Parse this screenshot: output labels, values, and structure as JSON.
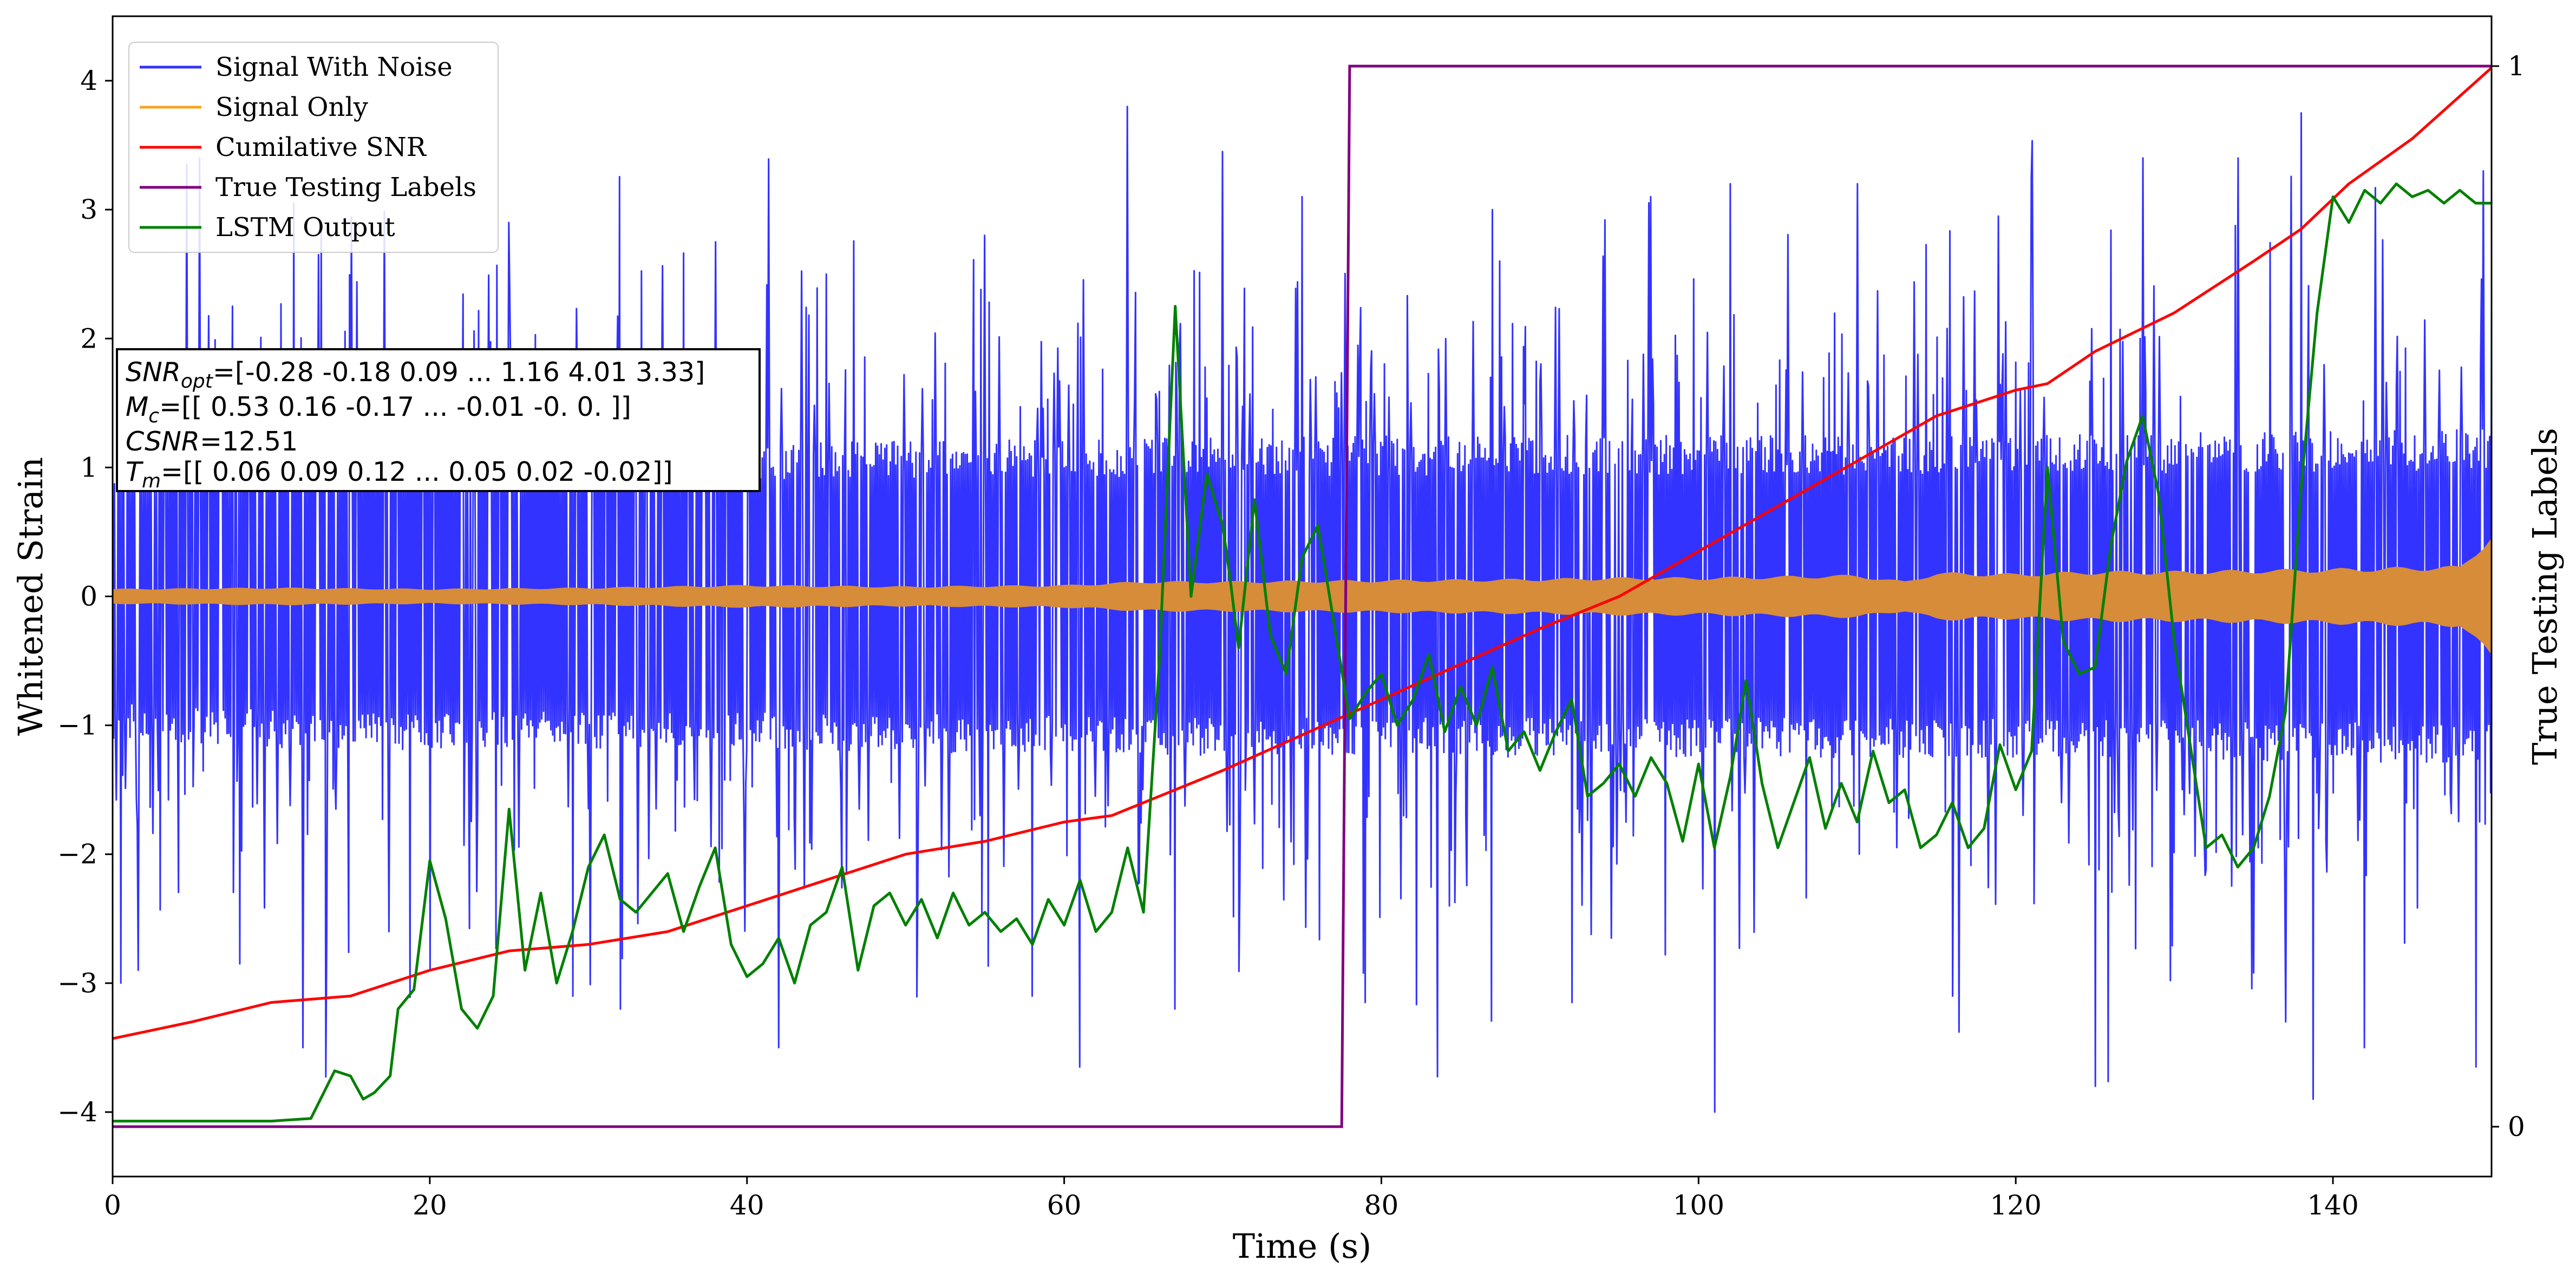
{
  "chart_data": {
    "type": "line",
    "xlabel": "Time (s)",
    "ylabel": "Whitened Strain",
    "y2label": "True Testing Labels",
    "xlim": [
      0,
      150
    ],
    "ylim": [
      -4.5,
      4.5
    ],
    "y2lim": [
      -0.047,
      1.047
    ],
    "xticks": [
      "0",
      "20",
      "40",
      "60",
      "80",
      "100",
      "120",
      "140"
    ],
    "yticks": [
      "−4",
      "−3",
      "−2",
      "−1",
      "0",
      "1",
      "2",
      "3",
      "4"
    ],
    "y2ticks": [
      "0",
      "1"
    ],
    "legend_position": "upper-left",
    "annotation": {
      "line1": "SNRopt=[-0.28 -0.18  0.09 ...  1.16  4.01  3.33]",
      "line2": "Mc=[[ 0.53  0.16 -0.17 ... -0.01 -0.    0.  ]]",
      "line3": "CSNR=12.51",
      "line4": "Tm=[[ 0.06  0.09  0.12 ...  0.05  0.02 -0.02]]",
      "line1_sym": "SNR",
      "line1_sub": "opt",
      "line1_rest": "=[-0.28 -0.18  0.09 ...  1.16  4.01  3.33]",
      "line2_sym": "M",
      "line2_sub": "c",
      "line2_rest": "=[[ 0.53  0.16 -0.17 ... -0.01 -0.    0.  ]]",
      "line3_sym": "CSNR",
      "line3_rest": "=12.51",
      "line4_sym": "T",
      "line4_sub": "m",
      "line4_rest": "=[[ 0.06  0.09  0.12 ...  0.05  0.02 -0.02]]"
    },
    "series": [
      {
        "name": "Signal With Noise",
        "color": "#3333ff",
        "axis": "left",
        "render": "noise-band",
        "band_upper": [
          [
            0,
            1.1
          ],
          [
            15,
            1.2
          ],
          [
            30,
            1.15
          ],
          [
            60,
            1.2
          ],
          [
            90,
            1.25
          ],
          [
            120,
            1.25
          ],
          [
            150,
            1.3
          ]
        ],
        "band_lower": [
          [
            0,
            -1.1
          ],
          [
            15,
            -1.2
          ],
          [
            30,
            -1.2
          ],
          [
            60,
            -1.25
          ],
          [
            90,
            -1.25
          ],
          [
            120,
            -1.25
          ],
          [
            150,
            -1.3
          ]
        ],
        "peak_spikes": [
          [
            0.5,
            -3.0
          ],
          [
            1.6,
            -2.9
          ],
          [
            4.7,
            3.35
          ],
          [
            5.5,
            3.4
          ],
          [
            8,
            -2.85
          ],
          [
            12,
            -3.5
          ],
          [
            13,
            2.65
          ],
          [
            20,
            -2.9
          ],
          [
            25,
            2.9
          ],
          [
            29,
            -3.1
          ],
          [
            32,
            -3.2
          ],
          [
            38,
            2.75
          ],
          [
            42,
            -3.5
          ],
          [
            45,
            2.5
          ],
          [
            55,
            2.8
          ],
          [
            58,
            -3.1
          ],
          [
            61,
            -3.65
          ],
          [
            64,
            3.8
          ],
          [
            67,
            -3.2
          ],
          [
            70,
            3.45
          ],
          [
            75,
            3.1
          ],
          [
            79,
            -3.15
          ],
          [
            87,
            3.0
          ],
          [
            92,
            -3.15
          ],
          [
            97,
            3.1
          ],
          [
            101,
            -4.0
          ],
          [
            102,
            3.2
          ],
          [
            110,
            3.2
          ],
          [
            116,
            -3.1
          ],
          [
            121,
            3.25
          ],
          [
            125,
            -3.8
          ],
          [
            128,
            3.4
          ],
          [
            134,
            3.4
          ],
          [
            137,
            -3.3
          ],
          [
            138,
            3.75
          ],
          [
            142,
            -3.5
          ],
          [
            149,
            -3.65
          ],
          [
            149.5,
            3.3
          ]
        ]
      },
      {
        "name": "Signal Only",
        "color": "#f5a623",
        "axis": "left",
        "render": "amplitude-band",
        "fill_color": "#d68c38",
        "amplitude": [
          [
            0,
            0.06
          ],
          [
            10,
            0.07
          ],
          [
            20,
            0.06
          ],
          [
            30,
            0.07
          ],
          [
            40,
            0.09
          ],
          [
            50,
            0.08
          ],
          [
            60,
            0.09
          ],
          [
            65,
            0.12
          ],
          [
            70,
            0.12
          ],
          [
            80,
            0.13
          ],
          [
            90,
            0.14
          ],
          [
            95,
            0.15
          ],
          [
            100,
            0.15
          ],
          [
            105,
            0.16
          ],
          [
            110,
            0.17
          ],
          [
            113,
            0.12
          ],
          [
            115,
            0.19
          ],
          [
            120,
            0.18
          ],
          [
            125,
            0.2
          ],
          [
            130,
            0.2
          ],
          [
            140,
            0.22
          ],
          [
            148,
            0.24
          ],
          [
            150,
            0.5
          ]
        ]
      },
      {
        "name": "Cumilative SNR",
        "color": "#ff0000",
        "axis": "left",
        "points": [
          [
            0,
            -3.43
          ],
          [
            5,
            -3.3
          ],
          [
            10,
            -3.15
          ],
          [
            15,
            -3.1
          ],
          [
            20,
            -2.9
          ],
          [
            25,
            -2.75
          ],
          [
            30,
            -2.7
          ],
          [
            35,
            -2.6
          ],
          [
            40,
            -2.4
          ],
          [
            45,
            -2.2
          ],
          [
            50,
            -2.0
          ],
          [
            55,
            -1.9
          ],
          [
            60,
            -1.75
          ],
          [
            63,
            -1.7
          ],
          [
            70,
            -1.35
          ],
          [
            80,
            -0.8
          ],
          [
            90,
            -0.25
          ],
          [
            95,
            0.0
          ],
          [
            100,
            0.35
          ],
          [
            105,
            0.7
          ],
          [
            110,
            1.05
          ],
          [
            115,
            1.4
          ],
          [
            120,
            1.6
          ],
          [
            122,
            1.65
          ],
          [
            125,
            1.9
          ],
          [
            130,
            2.2
          ],
          [
            135,
            2.6
          ],
          [
            138,
            2.85
          ],
          [
            141,
            3.2
          ],
          [
            145,
            3.55
          ],
          [
            150,
            4.1
          ]
        ]
      },
      {
        "name": "True Testing Labels",
        "color": "#800080",
        "axis": "right",
        "points": [
          [
            0,
            0
          ],
          [
            77.5,
            0
          ],
          [
            78,
            1
          ],
          [
            150,
            1
          ]
        ]
      },
      {
        "name": "LSTM Output",
        "color": "#008000",
        "axis": "left",
        "points": [
          [
            0,
            -4.07
          ],
          [
            10,
            -4.07
          ],
          [
            12.5,
            -4.05
          ],
          [
            14,
            -3.68
          ],
          [
            15,
            -3.72
          ],
          [
            15.8,
            -3.9
          ],
          [
            16.5,
            -3.85
          ],
          [
            17.5,
            -3.72
          ],
          [
            18,
            -3.2
          ],
          [
            19,
            -3.05
          ],
          [
            20,
            -2.05
          ],
          [
            21,
            -2.5
          ],
          [
            22,
            -3.2
          ],
          [
            23,
            -3.35
          ],
          [
            24,
            -3.1
          ],
          [
            25,
            -1.65
          ],
          [
            26,
            -2.9
          ],
          [
            27,
            -2.3
          ],
          [
            28,
            -3.0
          ],
          [
            29,
            -2.6
          ],
          [
            30,
            -2.1
          ],
          [
            31,
            -1.85
          ],
          [
            32,
            -2.35
          ],
          [
            33,
            -2.45
          ],
          [
            34,
            -2.3
          ],
          [
            35,
            -2.15
          ],
          [
            36,
            -2.6
          ],
          [
            37,
            -2.25
          ],
          [
            38,
            -1.95
          ],
          [
            39,
            -2.7
          ],
          [
            40,
            -2.95
          ],
          [
            41,
            -2.85
          ],
          [
            42,
            -2.65
          ],
          [
            43,
            -3.0
          ],
          [
            44,
            -2.55
          ],
          [
            45,
            -2.45
          ],
          [
            46,
            -2.1
          ],
          [
            47,
            -2.9
          ],
          [
            48,
            -2.4
          ],
          [
            49,
            -2.3
          ],
          [
            50,
            -2.55
          ],
          [
            51,
            -2.35
          ],
          [
            52,
            -2.65
          ],
          [
            53,
            -2.3
          ],
          [
            54,
            -2.55
          ],
          [
            55,
            -2.45
          ],
          [
            56,
            -2.6
          ],
          [
            57,
            -2.5
          ],
          [
            58,
            -2.7
          ],
          [
            59,
            -2.35
          ],
          [
            60,
            -2.55
          ],
          [
            61,
            -2.2
          ],
          [
            62,
            -2.6
          ],
          [
            63,
            -2.45
          ],
          [
            64,
            -1.95
          ],
          [
            65,
            -2.45
          ],
          [
            66,
            -0.5
          ],
          [
            67,
            2.25
          ],
          [
            68,
            0.0
          ],
          [
            69,
            0.95
          ],
          [
            70,
            0.55
          ],
          [
            70.5,
            0.1
          ],
          [
            71,
            -0.4
          ],
          [
            72,
            0.75
          ],
          [
            73,
            -0.3
          ],
          [
            74,
            -0.6
          ],
          [
            75,
            0.3
          ],
          [
            76,
            0.55
          ],
          [
            77,
            -0.2
          ],
          [
            78,
            -0.95
          ],
          [
            79,
            -0.75
          ],
          [
            80,
            -0.6
          ],
          [
            81,
            -1.0
          ],
          [
            82,
            -0.8
          ],
          [
            83,
            -0.45
          ],
          [
            84,
            -1.05
          ],
          [
            85,
            -0.7
          ],
          [
            86,
            -1.0
          ],
          [
            87,
            -0.55
          ],
          [
            88,
            -1.2
          ],
          [
            89,
            -1.05
          ],
          [
            90,
            -1.35
          ],
          [
            91,
            -1.05
          ],
          [
            92,
            -0.8
          ],
          [
            93,
            -1.55
          ],
          [
            94,
            -1.45
          ],
          [
            95,
            -1.3
          ],
          [
            96,
            -1.55
          ],
          [
            97,
            -1.25
          ],
          [
            98,
            -1.45
          ],
          [
            99,
            -1.9
          ],
          [
            100,
            -1.3
          ],
          [
            101,
            -1.95
          ],
          [
            102,
            -1.4
          ],
          [
            103,
            -0.65
          ],
          [
            104,
            -1.45
          ],
          [
            105,
            -1.95
          ],
          [
            106,
            -1.6
          ],
          [
            107,
            -1.25
          ],
          [
            108,
            -1.8
          ],
          [
            109,
            -1.45
          ],
          [
            110,
            -1.75
          ],
          [
            111,
            -1.2
          ],
          [
            112,
            -1.6
          ],
          [
            113,
            -1.5
          ],
          [
            114,
            -1.95
          ],
          [
            115,
            -1.85
          ],
          [
            116,
            -1.6
          ],
          [
            117,
            -1.95
          ],
          [
            118,
            -1.8
          ],
          [
            119,
            -1.15
          ],
          [
            120,
            -1.5
          ],
          [
            121,
            -1.2
          ],
          [
            122,
            1.0
          ],
          [
            123,
            -0.35
          ],
          [
            124,
            -0.6
          ],
          [
            125,
            -0.55
          ],
          [
            126,
            0.4
          ],
          [
            127,
            1.05
          ],
          [
            128,
            1.4
          ],
          [
            129,
            0.8
          ],
          [
            130,
            -0.35
          ],
          [
            131,
            -1.15
          ],
          [
            132,
            -1.95
          ],
          [
            133,
            -1.85
          ],
          [
            134,
            -2.1
          ],
          [
            135,
            -1.95
          ],
          [
            136,
            -1.55
          ],
          [
            137,
            -0.9
          ],
          [
            138,
            0.85
          ],
          [
            139,
            2.2
          ],
          [
            140,
            3.1
          ],
          [
            141,
            2.9
          ],
          [
            142,
            3.15
          ],
          [
            143,
            3.05
          ],
          [
            144,
            3.2
          ],
          [
            145,
            3.1
          ],
          [
            146,
            3.15
          ],
          [
            147,
            3.05
          ],
          [
            148,
            3.15
          ],
          [
            149,
            3.05
          ],
          [
            150,
            3.05
          ]
        ]
      }
    ]
  }
}
